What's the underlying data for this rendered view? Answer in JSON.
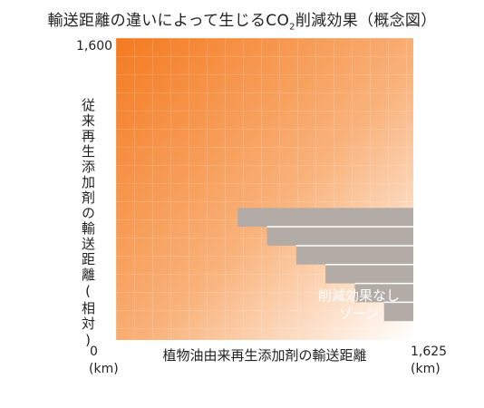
{
  "title_main": "輸送距離の違いによって生じるCO",
  "title_sub": "2",
  "title_tail": "削減効果（概念図）",
  "chart_data": {
    "type": "heatmap",
    "title": "輸送距離の違いによって生じるCO2削減効果（概念図）",
    "xlabel": "植物油由来再生添加剤の輸送距離",
    "ylabel": "従来再生添加剤の輸送距離(相対)",
    "x_ticks": [
      "0",
      "1,625"
    ],
    "x_unit": "(km)",
    "y_ticks": [
      "1,600"
    ],
    "xlim": [
      0,
      1625
    ],
    "ylim": [
      0,
      1600
    ],
    "color_low": "#ffffff",
    "color_high": "#f47a20",
    "zone": {
      "label_line1": "削減効果なし",
      "label_line2": "ゾーン",
      "color": "#b3aca6",
      "step_x_start": [
        1625,
        1465,
        1305,
        1145,
        985,
        825,
        665
      ],
      "step_y_top": [
        0,
        100,
        200,
        300,
        400,
        500,
        600,
        700
      ]
    }
  }
}
